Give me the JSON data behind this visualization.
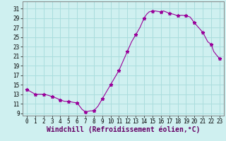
{
  "line_x": [
    0,
    0.5,
    1,
    1.5,
    2,
    2.5,
    3,
    3.5,
    4,
    4.5,
    5,
    5.5,
    6,
    6.3,
    6.6,
    7,
    7.3,
    7.6,
    8,
    8.5,
    9,
    9.5,
    10,
    10.5,
    11,
    11.5,
    12,
    12.5,
    13,
    13.5,
    14,
    14.3,
    14.6,
    15,
    15.3,
    15.6,
    16,
    16.3,
    16.6,
    17,
    17.5,
    18,
    18.5,
    19,
    19.5,
    20,
    20.5,
    21,
    21.3,
    21.6,
    22,
    22.3,
    22.6,
    23
  ],
  "line_y": [
    14.0,
    13.5,
    13.0,
    13.0,
    13.0,
    12.8,
    12.5,
    12.2,
    11.8,
    11.5,
    11.5,
    11.3,
    11.2,
    10.5,
    9.8,
    9.3,
    9.4,
    9.5,
    9.5,
    10.5,
    12.0,
    13.5,
    15.0,
    16.5,
    18.0,
    20.0,
    22.0,
    24.0,
    25.5,
    27.0,
    29.0,
    29.8,
    30.3,
    30.5,
    30.5,
    30.4,
    30.3,
    30.5,
    30.3,
    30.0,
    29.8,
    29.5,
    29.6,
    29.5,
    29.2,
    28.0,
    27.0,
    26.0,
    25.0,
    24.0,
    23.5,
    22.0,
    21.3,
    20.5
  ],
  "mark_x": [
    0,
    1,
    2,
    3,
    4,
    5,
    6,
    7,
    8,
    9,
    10,
    11,
    12,
    13,
    14,
    15,
    16,
    17,
    18,
    19,
    20,
    21,
    22,
    23
  ],
  "mark_y": [
    14.0,
    13.0,
    13.0,
    12.5,
    11.8,
    11.5,
    11.2,
    9.3,
    9.5,
    12.0,
    15.0,
    18.0,
    22.0,
    25.5,
    29.0,
    30.5,
    30.3,
    30.0,
    29.5,
    29.5,
    28.0,
    26.0,
    23.5,
    20.5
  ],
  "line_color": "#990099",
  "bg_color": "#cff0f0",
  "grid_color": "#aadddd",
  "xlabel": "Windchill (Refroidissement éolien,°C)",
  "ylabel_ticks": [
    9,
    11,
    13,
    15,
    17,
    19,
    21,
    23,
    25,
    27,
    29,
    31
  ],
  "xtick_labels": [
    "0",
    "1",
    "2",
    "3",
    "4",
    "5",
    "6",
    "7",
    "8",
    "9",
    "10",
    "11",
    "12",
    "13",
    "14",
    "15",
    "16",
    "17",
    "18",
    "19",
    "20",
    "21",
    "22",
    "23"
  ],
  "xlim": [
    -0.5,
    23.5
  ],
  "ylim": [
    8.5,
    32.5
  ]
}
